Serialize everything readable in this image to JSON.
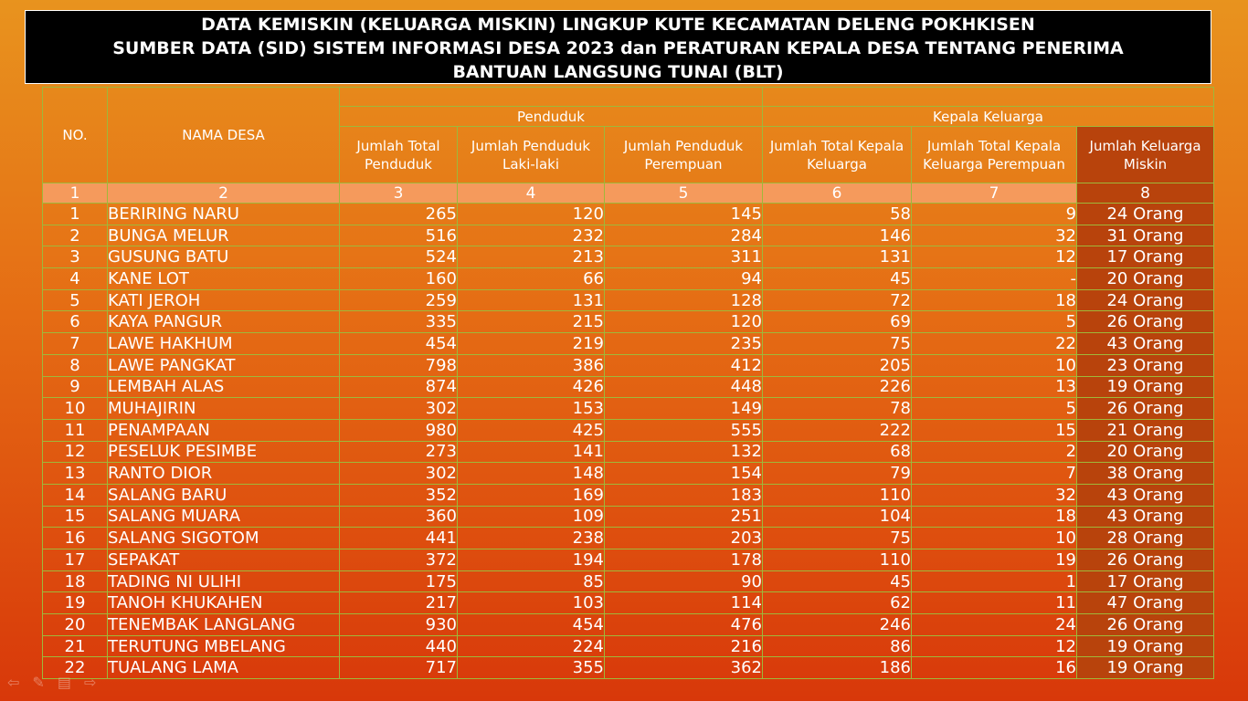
{
  "title": {
    "line1": "DATA KEMISKIN (KELUARGA MISKIN) LINGKUP KUTE KECAMATAN DELENG POKHKISEN",
    "line2": "SUMBER DATA (SID) SISTEM INFORMASI DESA 2023 dan PERATURAN KEPALA DESA TENTANG PENERIMA",
    "line3": "BANTUAN LANGSUNG TUNAI (BLT)"
  },
  "headers": {
    "no": "NO.",
    "nama_desa": "NAMA DESA",
    "penduduk": "Penduduk",
    "kepala_keluarga": "Kepala Keluarga",
    "jumlah_total_penduduk": "Jumlah Total Penduduk",
    "jumlah_laki": "Jumlah Penduduk Laki-laki",
    "jumlah_perempuan": "Jumlah Penduduk Perempuan",
    "jumlah_total_kk": "Jumlah Total Kepala Keluarga",
    "jumlah_kk_perempuan": "Jumlah Total Kepala Keluarga Perempuan",
    "jumlah_miskin": "Jumlah Keluarga Miskin"
  },
  "column_numbers": [
    "1",
    "2",
    "3",
    "4",
    "5",
    "6",
    "7",
    "8"
  ],
  "rows": [
    {
      "no": "1",
      "desa": "BERIRING NARU",
      "total": "265",
      "laki": "120",
      "perempuan": "145",
      "kk": "58",
      "kk_perempuan": "9",
      "miskin": "24 Orang"
    },
    {
      "no": "2",
      "desa": "BUNGA MELUR",
      "total": "516",
      "laki": "232",
      "perempuan": "284",
      "kk": "146",
      "kk_perempuan": "32",
      "miskin": "31 Orang"
    },
    {
      "no": "3",
      "desa": "GUSUNG BATU",
      "total": "524",
      "laki": "213",
      "perempuan": "311",
      "kk": "131",
      "kk_perempuan": "12",
      "miskin": "17 Orang"
    },
    {
      "no": "4",
      "desa": "KANE LOT",
      "total": "160",
      "laki": "66",
      "perempuan": "94",
      "kk": "45",
      "kk_perempuan": "-",
      "miskin": "20 Orang"
    },
    {
      "no": "5",
      "desa": "KATI  JEROH",
      "total": "259",
      "laki": "131",
      "perempuan": "128",
      "kk": "72",
      "kk_perempuan": "18",
      "miskin": "24 Orang"
    },
    {
      "no": "6",
      "desa": "KAYA PANGUR",
      "total": "335",
      "laki": "215",
      "perempuan": "120",
      "kk": "69",
      "kk_perempuan": "5",
      "miskin": "26 Orang"
    },
    {
      "no": "7",
      "desa": "LAWE HAKHUM",
      "total": "454",
      "laki": "219",
      "perempuan": "235",
      "kk": "75",
      "kk_perempuan": "22",
      "miskin": "43 Orang"
    },
    {
      "no": "8",
      "desa": "LAWE PANGKAT",
      "total": "798",
      "laki": "386",
      "perempuan": "412",
      "kk": "205",
      "kk_perempuan": "10",
      "miskin": "23 Orang"
    },
    {
      "no": "9",
      "desa": "LEMBAH ALAS",
      "total": "874",
      "laki": "426",
      "perempuan": "448",
      "kk": "226",
      "kk_perempuan": "13",
      "miskin": "19 Orang"
    },
    {
      "no": "10",
      "desa": "MUHAJIRIN",
      "total": "302",
      "laki": "153",
      "perempuan": "149",
      "kk": "78",
      "kk_perempuan": "5",
      "miskin": "26 Orang"
    },
    {
      "no": "11",
      "desa": "PENAMPAAN",
      "total": "980",
      "laki": "425",
      "perempuan": "555",
      "kk": "222",
      "kk_perempuan": "15",
      "miskin": "21 Orang"
    },
    {
      "no": "12",
      "desa": "PESELUK PESIMBE",
      "total": "273",
      "laki": "141",
      "perempuan": "132",
      "kk": "68",
      "kk_perempuan": "2",
      "miskin": "20 Orang"
    },
    {
      "no": "13",
      "desa": "RANTO DIOR",
      "total": "302",
      "laki": "148",
      "perempuan": "154",
      "kk": "79",
      "kk_perempuan": "7",
      "miskin": "38 Orang"
    },
    {
      "no": "14",
      "desa": "SALANG BARU",
      "total": "352",
      "laki": "169",
      "perempuan": "183",
      "kk": "110",
      "kk_perempuan": "32",
      "miskin": "43 Orang"
    },
    {
      "no": "15",
      "desa": "SALANG MUARA",
      "total": "360",
      "laki": "109",
      "perempuan": "251",
      "kk": "104",
      "kk_perempuan": "18",
      "miskin": "43 Orang"
    },
    {
      "no": "16",
      "desa": "SALANG SIGOTOM",
      "total": "441",
      "laki": "238",
      "perempuan": "203",
      "kk": "75",
      "kk_perempuan": "10",
      "miskin": "28 Orang"
    },
    {
      "no": "17",
      "desa": "SEPAKAT",
      "total": "372",
      "laki": "194",
      "perempuan": "178",
      "kk": "110",
      "kk_perempuan": "19",
      "miskin": "26 Orang"
    },
    {
      "no": "18",
      "desa": "TADING NI ULIHI",
      "total": "175",
      "laki": "85",
      "perempuan": "90",
      "kk": "45",
      "kk_perempuan": "1",
      "miskin": "17 Orang"
    },
    {
      "no": "19",
      "desa": "TANOH KHUKAHEN",
      "total": "217",
      "laki": "103",
      "perempuan": "114",
      "kk": "62",
      "kk_perempuan": "11",
      "miskin": "47 Orang"
    },
    {
      "no": "20",
      "desa": "TENEMBAK LANGLANG",
      "total": "930",
      "laki": "454",
      "perempuan": "476",
      "kk": "246",
      "kk_perempuan": "24",
      "miskin": "26 Orang"
    },
    {
      "no": "21",
      "desa": "TERUTUNG MBELANG",
      "total": "440",
      "laki": "224",
      "perempuan": "216",
      "kk": "86",
      "kk_perempuan": "12",
      "miskin": "19 Orang"
    },
    {
      "no": "22",
      "desa": "TUALANG LAMA",
      "total": "717",
      "laki": "355",
      "perempuan": "362",
      "kk": "186",
      "kk_perempuan": "16",
      "miskin": "19 Orang"
    }
  ],
  "nav_icons": [
    "back-arrow-icon",
    "pen-icon",
    "menu-icon",
    "forward-arrow-icon"
  ],
  "colors": {
    "background_top": "#e8931e",
    "background_bottom": "#d8380a",
    "grid": "#9fb83a",
    "number_row": "#f59a5c",
    "miskin_column": "#b8430c"
  }
}
